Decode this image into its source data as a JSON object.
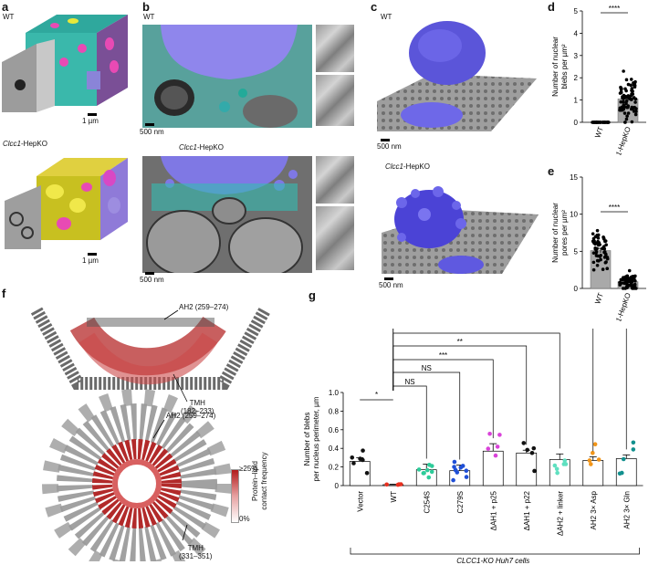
{
  "panel_letters": {
    "a": "a",
    "b": "b",
    "c": "c",
    "d": "d",
    "e": "e",
    "f": "f",
    "g": "g"
  },
  "labels": {
    "wt": "WT",
    "ko_italic": "Clcc1",
    "ko_suffix": "-HepKO",
    "scale_1um": "1 µm",
    "scale_500nm": "500 nm"
  },
  "panel_d": {
    "ylabel_line1": "Number of nuclear",
    "ylabel_line2": "blebs per µm²",
    "significance": "****",
    "chart_data": {
      "type": "bar",
      "categories": [
        "WT",
        "Clcc1-HepKO"
      ],
      "values": [
        0,
        1.05
      ],
      "errors": [
        0,
        0.12
      ],
      "ylim": [
        0,
        5
      ],
      "yticks": [
        0,
        1,
        2,
        3,
        4,
        5
      ],
      "ylabel": "Number of nuclear blebs per µm²"
    }
  },
  "panel_e": {
    "ylabel_line1": "Number of nuclear",
    "ylabel_line2": "pores per µm²",
    "significance": "****",
    "chart_data": {
      "type": "bar",
      "categories": [
        "WT",
        "Clcc1-HepKO"
      ],
      "values": [
        5.1,
        0.9
      ],
      "errors": [
        0.3,
        0.15
      ],
      "ylim": [
        0,
        15
      ],
      "yticks": [
        0,
        5,
        10,
        15
      ],
      "ylabel": "Number of nuclear pores per µm²"
    }
  },
  "panel_f": {
    "ah2_label": "AH2 (259–274)",
    "tmh1_label": "TMH",
    "tmh1_range": "(182–233)",
    "tmh2_label": "TMH",
    "tmh2_range": "(331–351)",
    "colorbar_top": "≥25%",
    "colorbar_bottom": "0%",
    "colorbar_title_line1": "Protein–lipid",
    "colorbar_title_line2": "contact frequency"
  },
  "panel_g": {
    "ylabel_line1": "Number of blebs",
    "ylabel_line2": "per nucleus perimeter, µm",
    "footer": "CLCC1-KO Huh7 cells",
    "sig_vector_wt": "*",
    "comparisons": [
      "NS",
      "NS",
      "***",
      "**",
      "*",
      "*",
      "*"
    ],
    "chart_data": {
      "type": "bar",
      "categories": [
        "Vector",
        "WT",
        "C254S",
        "C279S",
        "ΔAH1 + p25",
        "ΔAH1 + p22",
        "ΔAH2 + linker",
        "AH2 3× Asp",
        "AH2 3× Gln"
      ],
      "values": [
        0.26,
        0.01,
        0.17,
        0.16,
        0.37,
        0.35,
        0.28,
        0.27,
        0.29
      ],
      "errors": [
        0.04,
        0.005,
        0.06,
        0.06,
        0.08,
        0.03,
        0.06,
        0.04,
        0.04
      ],
      "ylim": [
        0,
        1.0
      ],
      "yticks": [
        0,
        0.2,
        0.4,
        0.6,
        0.8,
        1.0
      ],
      "colors": [
        "#111111",
        "#e8301f",
        "#2ecc9a",
        "#1f4fd6",
        "#d943d9",
        "#111111",
        "#5fe0c0",
        "#f2961a",
        "#12908e"
      ],
      "ylabel": "Number of blebs per nucleus perimeter, µm"
    }
  }
}
